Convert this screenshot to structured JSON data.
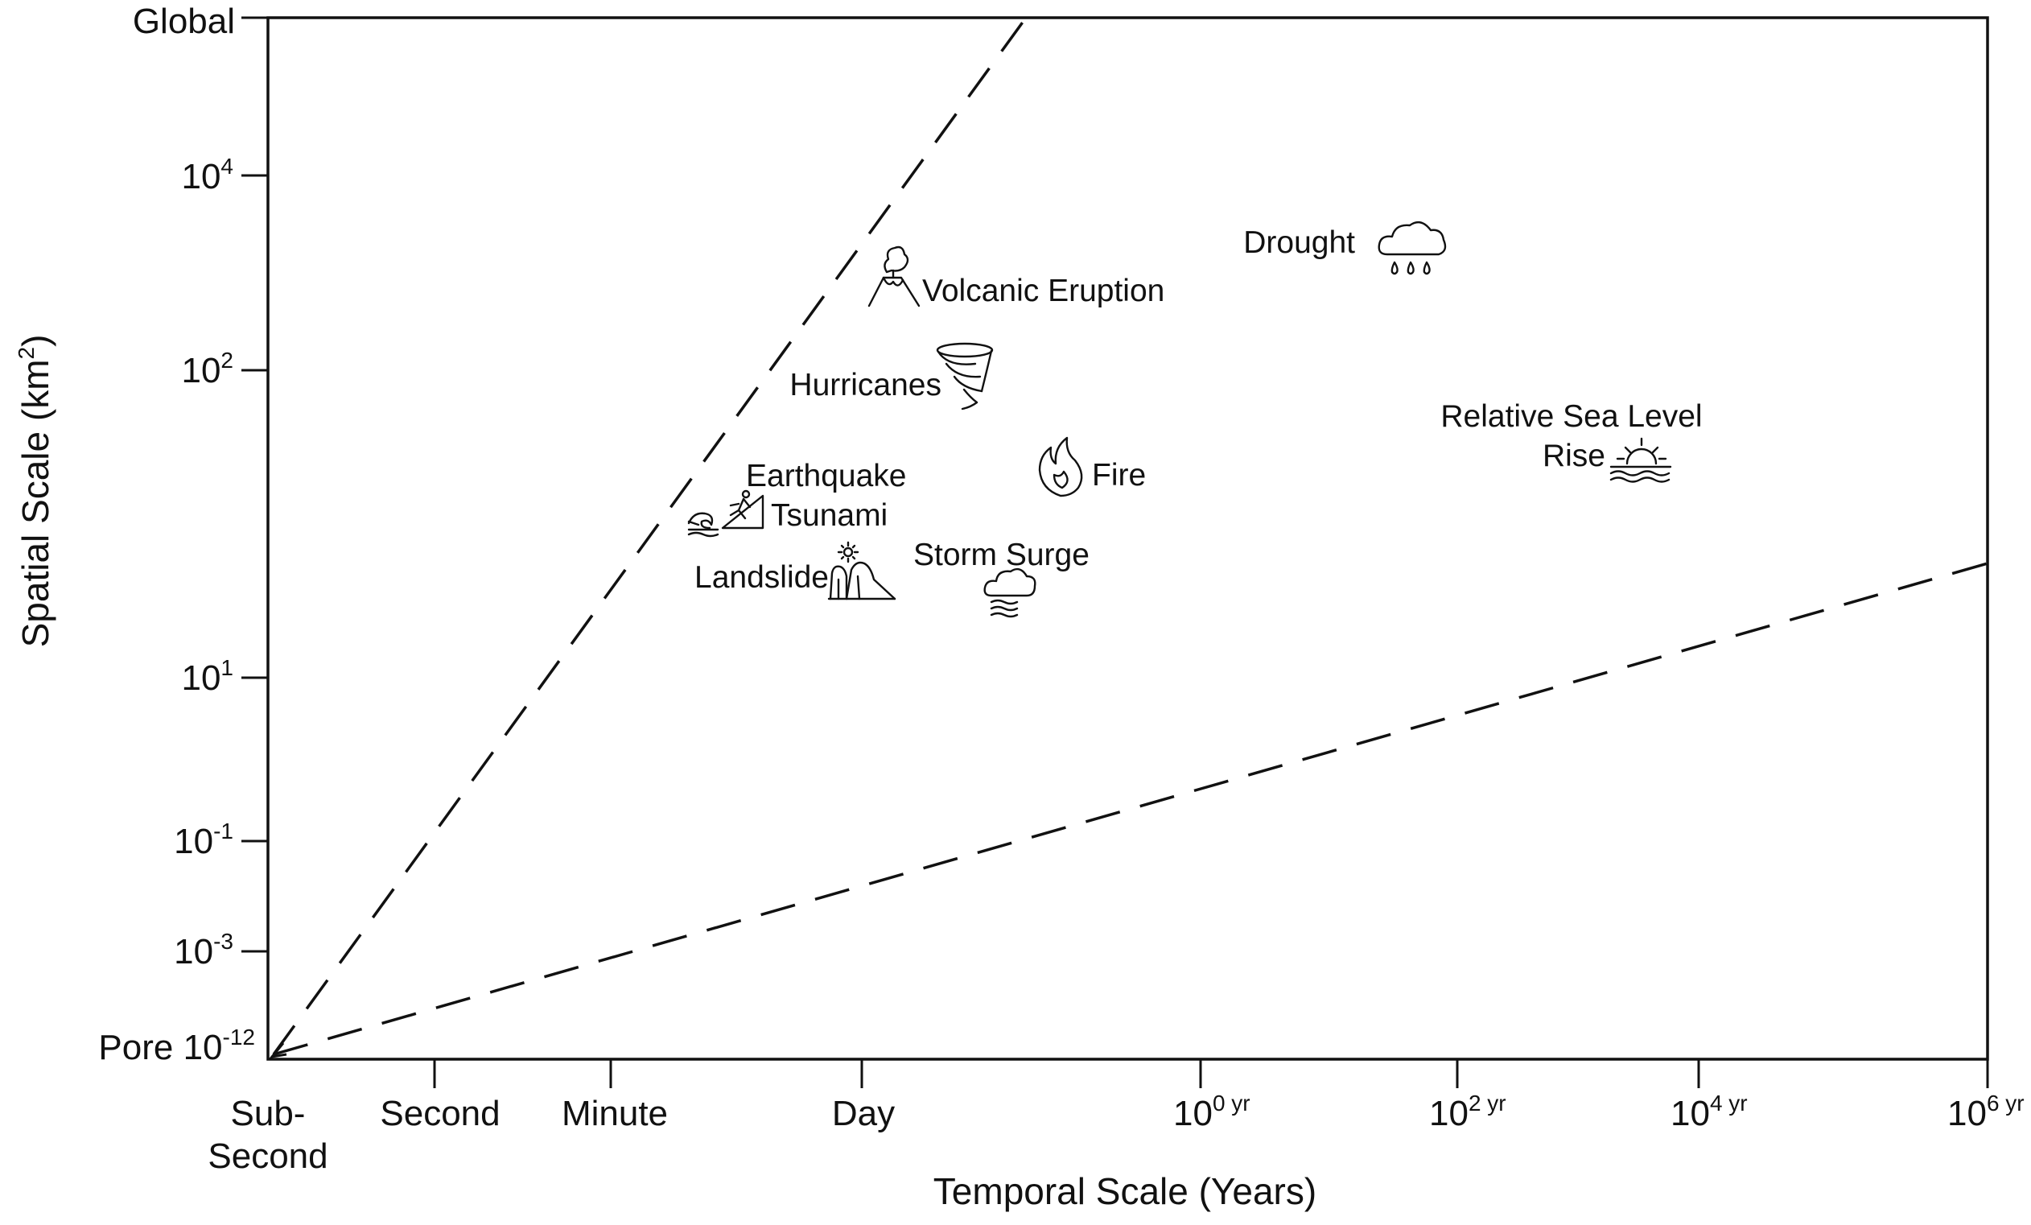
{
  "chart_data": {
    "type": "scatter",
    "xlabel": "Temporal Scale (Years)",
    "ylabel_main": "Spatial Scale (km",
    "ylabel_sup": "2",
    "ylabel_close": ")",
    "x_ticks": [
      {
        "label": "Sub-",
        "label2": "Second",
        "sup": ""
      },
      {
        "label": "Second",
        "label2": "",
        "sup": ""
      },
      {
        "label": "Minute",
        "label2": "",
        "sup": ""
      },
      {
        "label": "Day",
        "label2": "",
        "sup": ""
      },
      {
        "label": "10",
        "label2": "",
        "sup": "0 yr"
      },
      {
        "label": "10",
        "label2": "",
        "sup": "2 yr"
      },
      {
        "label": "10",
        "label2": "",
        "sup": "4 yr"
      },
      {
        "label": "10",
        "label2": "",
        "sup": "6 yr"
      }
    ],
    "y_ticks": [
      {
        "label": "Pore 10",
        "sup": "-12"
      },
      {
        "label": "10",
        "sup": "-3"
      },
      {
        "label": "10",
        "sup": "-1"
      },
      {
        "label": "10",
        "sup": "1"
      },
      {
        "label": "10",
        "sup": "2"
      },
      {
        "label": "10",
        "sup": "4"
      },
      {
        "label": "Global",
        "sup": ""
      }
    ],
    "hazards": [
      {
        "name": "Volcanic Eruption",
        "icon": "volcano-icon"
      },
      {
        "name": "Hurricanes",
        "icon": "tornado-icon"
      },
      {
        "name": "Drought",
        "icon": "rain-cloud-icon"
      },
      {
        "name": "Relative Sea Level",
        "name2": "Rise",
        "icon": "sunset-waves-icon"
      },
      {
        "name": "Earthquake",
        "icon": "falling-person-icon"
      },
      {
        "name": "Tsunami",
        "icon": "wave-icon"
      },
      {
        "name": "Fire",
        "icon": "flame-icon"
      },
      {
        "name": "Storm Surge",
        "icon": "cloud-waves-icon"
      },
      {
        "name": "Landslide",
        "icon": "cliff-sun-icon"
      }
    ],
    "bounding_lines": [
      {
        "style": "dashed",
        "description": "upper"
      },
      {
        "style": "dashed",
        "description": "lower"
      }
    ],
    "grid": false,
    "legend": "none"
  }
}
